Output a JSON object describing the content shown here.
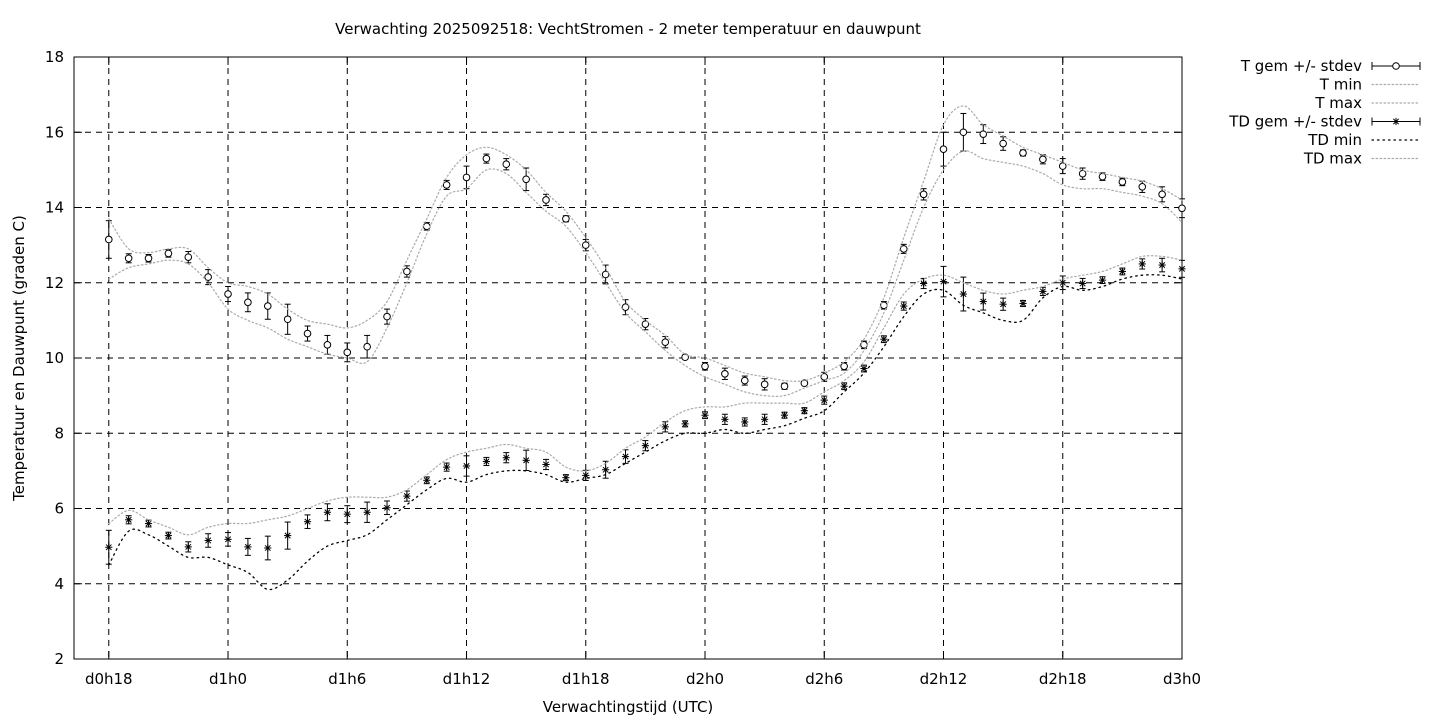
{
  "chart_data": {
    "type": "line",
    "title": "Verwachting 2025092518: VechtStromen - 2 meter temperatuur en dauwpunt",
    "xlabel": "Verwachtingstijd (UTC)",
    "ylabel": "Temperatuur en Dauwpunt (graden C)",
    "ylim": [
      2,
      18
    ],
    "yticks": [
      2,
      4,
      6,
      8,
      10,
      12,
      14,
      16,
      18
    ],
    "xlim": [
      -1.75,
      54
    ],
    "xticks": [
      {
        "x": 0,
        "label": "d0h18"
      },
      {
        "x": 6,
        "label": "d1h0"
      },
      {
        "x": 12,
        "label": "d1h6"
      },
      {
        "x": 18,
        "label": "d1h12"
      },
      {
        "x": 24,
        "label": "d1h18"
      },
      {
        "x": 30,
        "label": "d2h0"
      },
      {
        "x": 36,
        "label": "d2h6"
      },
      {
        "x": 42,
        "label": "d2h12"
      },
      {
        "x": 48,
        "label": "d2h18"
      },
      {
        "x": 54,
        "label": "d3h0"
      }
    ],
    "grid": true,
    "legend_position": "outside-top-right",
    "x": [
      0,
      1,
      2,
      3,
      4,
      5,
      6,
      7,
      8,
      9,
      10,
      11,
      12,
      13,
      14,
      15,
      16,
      17,
      18,
      19,
      20,
      21,
      22,
      23,
      24,
      25,
      26,
      27,
      28,
      29,
      30,
      31,
      32,
      33,
      34,
      35,
      36,
      37,
      38,
      39,
      40,
      41,
      42,
      43,
      44,
      45,
      46,
      47,
      48,
      49,
      50,
      51,
      52,
      53,
      54
    ],
    "series": [
      {
        "name": "T gem +/- stdev",
        "marker": "open-circle",
        "style": "errorbars",
        "values": [
          13.15,
          12.65,
          12.65,
          12.78,
          12.68,
          12.15,
          11.7,
          11.48,
          11.38,
          11.03,
          10.65,
          10.35,
          10.15,
          10.3,
          11.1,
          12.3,
          13.5,
          14.6,
          14.8,
          15.3,
          15.15,
          14.75,
          14.2,
          13.7,
          13.0,
          12.22,
          11.35,
          10.9,
          10.42,
          10.02,
          9.78,
          9.58,
          9.4,
          9.3,
          9.25,
          9.33,
          9.5,
          9.78,
          10.35,
          11.4,
          12.9,
          14.35,
          15.55,
          16.0,
          15.95,
          15.7,
          15.45,
          15.28,
          15.1,
          14.9,
          14.82,
          14.68,
          14.55,
          14.35,
          13.98
        ],
        "stdev": [
          0.5,
          0.12,
          0.1,
          0.1,
          0.15,
          0.2,
          0.2,
          0.25,
          0.35,
          0.4,
          0.2,
          0.25,
          0.25,
          0.3,
          0.2,
          0.15,
          0.1,
          0.12,
          0.3,
          0.12,
          0.15,
          0.3,
          0.15,
          0.08,
          0.15,
          0.25,
          0.2,
          0.15,
          0.15,
          0.05,
          0.1,
          0.15,
          0.12,
          0.15,
          0.08,
          0.05,
          0.12,
          0.1,
          0.1,
          0.1,
          0.12,
          0.15,
          0.45,
          0.5,
          0.25,
          0.18,
          0.08,
          0.12,
          0.2,
          0.15,
          0.1,
          0.1,
          0.15,
          0.2,
          0.25
        ]
      },
      {
        "name": "T min",
        "style": "dotted",
        "values": [
          12.1,
          12.4,
          12.5,
          12.6,
          12.5,
          12.0,
          11.3,
          11.0,
          10.8,
          10.5,
          10.3,
          10.1,
          10.0,
          9.9,
          10.8,
          12.0,
          13.3,
          14.3,
          14.5,
          15.0,
          14.9,
          14.4,
          13.9,
          13.5,
          12.8,
          12.0,
          11.2,
          10.7,
          10.2,
          9.8,
          9.5,
          9.3,
          9.1,
          9.0,
          9.0,
          9.2,
          9.4,
          9.6,
          10.2,
          11.2,
          12.6,
          14.0,
          15.0,
          15.5,
          15.3,
          15.2,
          15.1,
          14.9,
          14.6,
          14.5,
          14.5,
          14.4,
          14.3,
          14.1,
          13.6
        ]
      },
      {
        "name": "T max",
        "style": "dotted",
        "values": [
          13.7,
          12.9,
          12.8,
          12.9,
          12.9,
          12.4,
          12.0,
          11.9,
          11.7,
          11.3,
          11.0,
          10.9,
          10.8,
          11.0,
          11.5,
          12.6,
          13.7,
          14.8,
          15.4,
          15.6,
          15.4,
          15.0,
          14.4,
          13.9,
          13.2,
          12.4,
          11.5,
          11.0,
          10.6,
          10.1,
          10.0,
          9.8,
          9.6,
          9.5,
          9.4,
          9.4,
          9.6,
          9.9,
          10.5,
          11.6,
          13.2,
          14.7,
          16.2,
          16.7,
          16.2,
          15.9,
          15.6,
          15.4,
          15.2,
          15.0,
          14.9,
          14.8,
          14.7,
          14.5,
          14.2
        ]
      },
      {
        "name": "TD gem +/- stdev",
        "marker": "asterisk",
        "style": "errorbars",
        "values": [
          4.97,
          5.7,
          5.6,
          5.28,
          4.98,
          5.15,
          5.18,
          4.98,
          4.95,
          5.28,
          5.65,
          5.9,
          5.85,
          5.9,
          6.02,
          6.33,
          6.75,
          7.1,
          7.13,
          7.25,
          7.35,
          7.28,
          7.17,
          6.82,
          6.88,
          7.03,
          7.38,
          7.67,
          8.17,
          8.25,
          8.48,
          8.37,
          8.3,
          8.37,
          8.48,
          8.6,
          8.88,
          9.25,
          9.72,
          10.5,
          11.38,
          11.98,
          12.03,
          11.7,
          11.5,
          11.43,
          11.45,
          11.77,
          12.0,
          11.98,
          12.07,
          12.3,
          12.5,
          12.47,
          12.37
        ]
      },
      {
        "name": "TD min",
        "style": "dotted",
        "values": [
          4.5,
          5.4,
          5.3,
          5.0,
          4.7,
          4.7,
          4.5,
          4.3,
          3.85,
          4.1,
          4.6,
          5.0,
          5.15,
          5.3,
          5.7,
          6.1,
          6.5,
          6.8,
          6.7,
          6.9,
          7.0,
          7.0,
          6.9,
          6.7,
          6.8,
          6.9,
          7.2,
          7.5,
          7.8,
          8.0,
          8.0,
          8.1,
          8.0,
          8.1,
          8.2,
          8.4,
          8.6,
          9.1,
          9.6,
          10.3,
          11.1,
          11.7,
          11.8,
          11.4,
          11.2,
          11.0,
          11.0,
          11.6,
          11.9,
          11.8,
          11.9,
          12.1,
          12.2,
          12.2,
          12.1
        ]
      },
      {
        "name": "TD max",
        "style": "dotted",
        "values": [
          5.6,
          5.95,
          5.7,
          5.5,
          5.3,
          5.5,
          5.6,
          5.6,
          5.7,
          5.8,
          6.0,
          6.2,
          6.3,
          6.3,
          6.3,
          6.5,
          6.9,
          7.3,
          7.5,
          7.6,
          7.7,
          7.6,
          7.5,
          7.1,
          7.0,
          7.2,
          7.6,
          7.9,
          8.3,
          8.6,
          8.7,
          8.7,
          8.8,
          8.8,
          8.8,
          8.8,
          9.1,
          9.4,
          9.9,
          10.8,
          11.7,
          12.1,
          12.2,
          12.0,
          11.8,
          11.7,
          11.8,
          11.9,
          12.1,
          12.2,
          12.3,
          12.5,
          12.7,
          12.7,
          12.6
        ]
      }
    ]
  }
}
